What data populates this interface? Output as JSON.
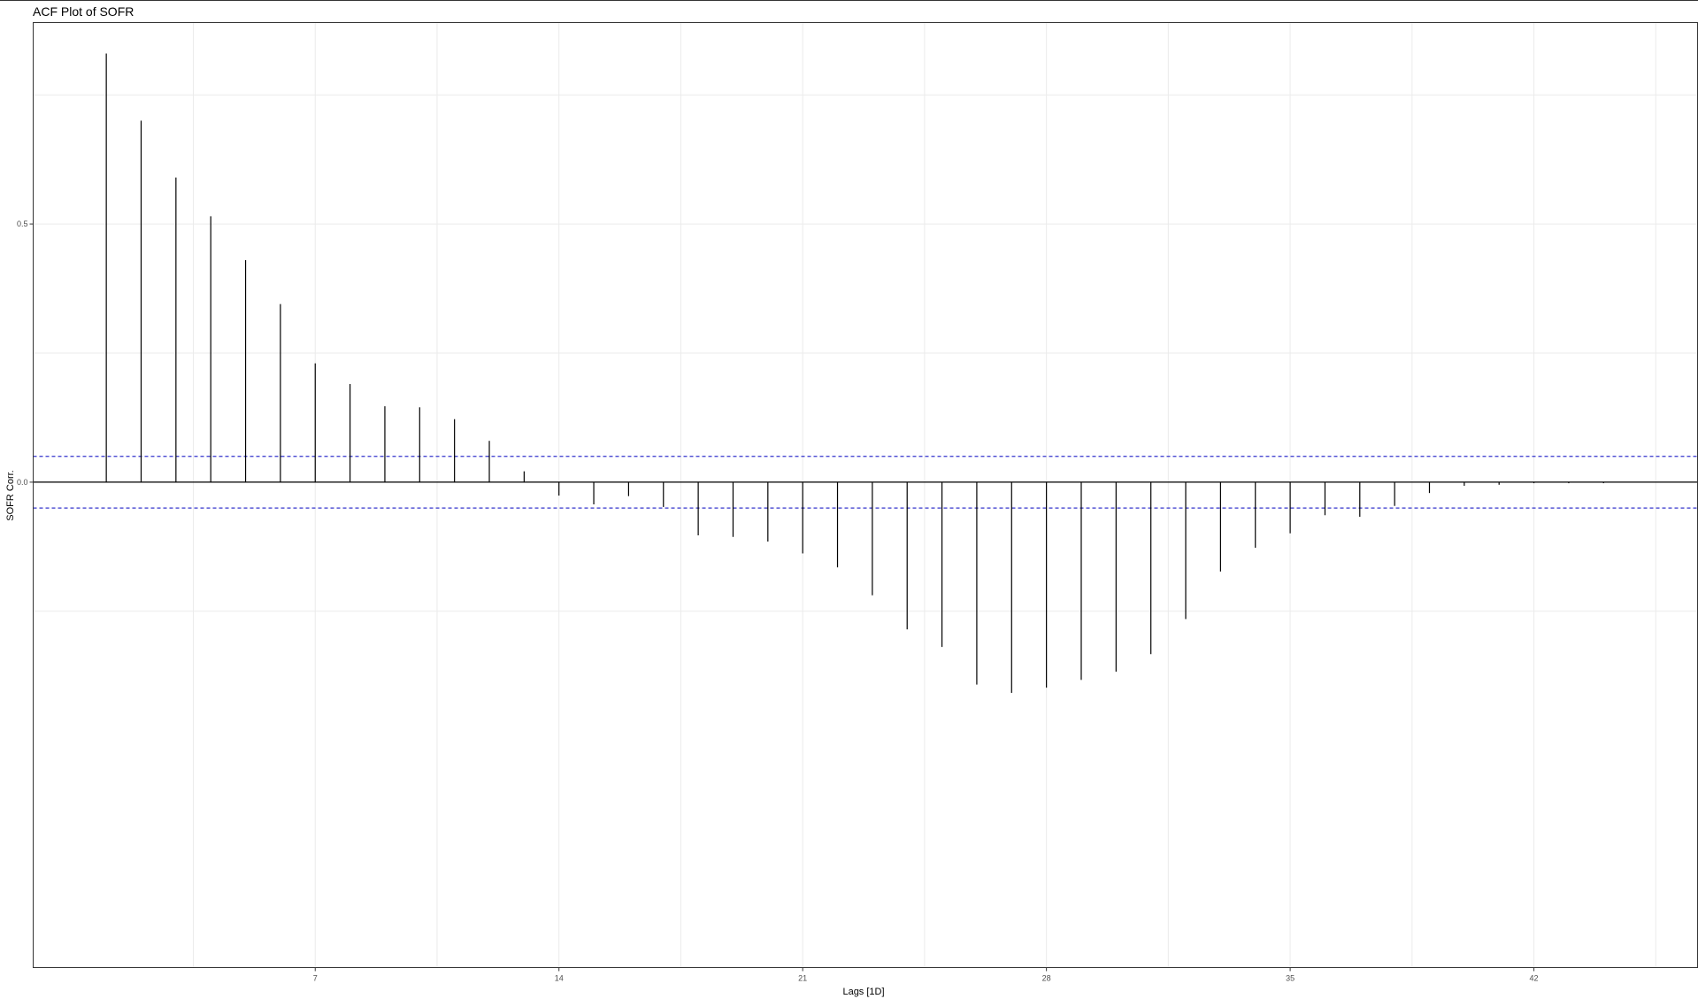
{
  "chart_data": {
    "type": "bar",
    "title": "ACF Plot of SOFR",
    "xlabel": "Lags [1D]",
    "ylabel": "SOFR Corr.",
    "xlim": [
      -1.1,
      46.7
    ],
    "ylim": [
      -0.94,
      0.89
    ],
    "x_ticks": [
      7,
      14,
      21,
      28,
      35,
      42
    ],
    "x_tick_labels": [
      "7",
      "14",
      "21",
      "28",
      "35",
      "42"
    ],
    "y_ticks": [
      0.5,
      0.0
    ],
    "y_tick_labels": [
      "0.5",
      "0.0"
    ],
    "y_minor_gridlines": [
      0.75,
      0.25,
      -0.25
    ],
    "x_minor_gridlines": [
      3.5,
      10.5,
      17.5,
      24.5,
      31.5,
      38.5,
      45.5
    ],
    "confidence_band": 0.05,
    "grid": true,
    "colors": {
      "stem": "#000000",
      "zero_line": "#000000",
      "confidence": "#3333cc",
      "grid": "#ebebeb",
      "panel_border": "#333333"
    },
    "lags": [
      1,
      2,
      3,
      4,
      5,
      6,
      7,
      8,
      9,
      10,
      11,
      12,
      13,
      14,
      15,
      16,
      17,
      18,
      19,
      20,
      21,
      22,
      23,
      24,
      25,
      26,
      27,
      28,
      29,
      30,
      31,
      32,
      33,
      34,
      35,
      36,
      37,
      38,
      39,
      40,
      41,
      42,
      43,
      44
    ],
    "values": [
      0.83,
      0.7,
      0.59,
      0.515,
      0.43,
      0.345,
      0.23,
      0.19,
      0.147,
      0.145,
      0.122,
      0.08,
      0.021,
      -0.026,
      -0.043,
      -0.027,
      -0.048,
      -0.103,
      -0.106,
      -0.115,
      -0.138,
      -0.165,
      -0.219,
      -0.285,
      -0.319,
      -0.392,
      -0.408,
      -0.398,
      -0.383,
      -0.367,
      -0.333,
      -0.265,
      -0.173,
      -0.127,
      -0.099,
      -0.064,
      -0.067,
      -0.046,
      -0.021,
      -0.007,
      -0.005,
      -0.002,
      -0.002,
      -0.002
    ]
  }
}
